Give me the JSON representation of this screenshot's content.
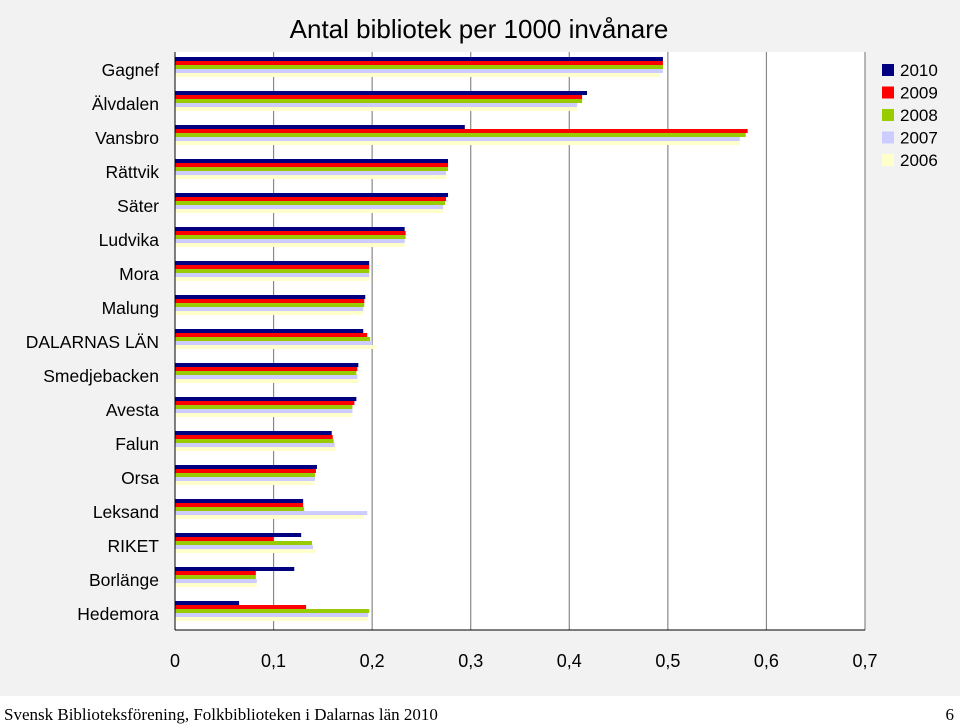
{
  "chart_data": {
    "type": "bar",
    "orientation": "horizontal",
    "title": "Antal bibliotek per 1000 invånare",
    "categories": [
      "Gagnef",
      "Älvdalen",
      "Vansbro",
      "Rättvik",
      "Säter",
      "Ludvika",
      "Mora",
      "Malung",
      "DALARNAS LÄN",
      "Smedjebacken",
      "Avesta",
      "Falun",
      "Orsa",
      "Leksand",
      "RIKET",
      "Borlänge",
      "Hedemora"
    ],
    "series": [
      {
        "name": "2010",
        "color": "#000080",
        "values": [
          0.495,
          0.418,
          0.294,
          0.277,
          0.277,
          0.233,
          0.197,
          0.193,
          0.191,
          0.186,
          0.184,
          0.159,
          0.144,
          0.13,
          0.128,
          0.121,
          0.065
        ]
      },
      {
        "name": "2009",
        "color": "#ff0000",
        "values": [
          0.495,
          0.413,
          0.581,
          0.277,
          0.275,
          0.234,
          0.197,
          0.192,
          0.195,
          0.185,
          0.182,
          0.16,
          0.143,
          0.13,
          0.1,
          0.082,
          0.133
        ]
      },
      {
        "name": "2008",
        "color": "#99cc00",
        "values": [
          0.495,
          0.413,
          0.579,
          0.277,
          0.274,
          0.234,
          0.197,
          0.192,
          0.198,
          0.184,
          0.18,
          0.161,
          0.142,
          0.131,
          0.139,
          0.082,
          0.197
        ]
      },
      {
        "name": "2007",
        "color": "#ccccff",
        "values": [
          0.495,
          0.408,
          0.573,
          0.275,
          0.272,
          0.233,
          0.197,
          0.191,
          0.2,
          0.185,
          0.18,
          0.162,
          0.142,
          0.195,
          0.14,
          0.083,
          0.196
        ]
      },
      {
        "name": "2006",
        "color": "#ffffcc",
        "values": [
          0.492,
          0.408,
          0.573,
          0.275,
          0.272,
          0.233,
          0.197,
          0.191,
          0.203,
          0.186,
          0.18,
          0.163,
          0.141,
          0.191,
          0.142,
          0.083,
          0.196
        ]
      }
    ],
    "xlim": [
      0,
      0.7
    ],
    "x_ticks": [
      "0",
      "0,1",
      "0,2",
      "0,3",
      "0,4",
      "0,5",
      "0,6",
      "0,7"
    ],
    "xlabel": "",
    "ylabel": "",
    "grid": true,
    "legend_position": "right"
  },
  "footer": {
    "text": "Svensk Biblioteksförening, Folkbiblioteken i Dalarnas län 2010",
    "page": "6"
  }
}
